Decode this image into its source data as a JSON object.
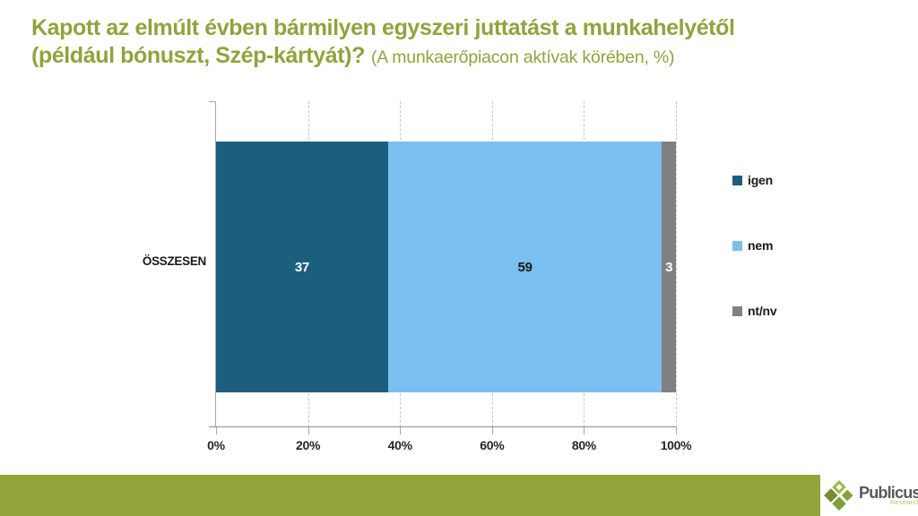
{
  "title": {
    "line1": "Kapott az elmúlt évben bármilyen egyszeri juttatást a munkahelyétől",
    "line2_bold": "(például bónuszt, Szép-kártyát)?",
    "subtitle": "(A munkaerőpiacon aktívak körében, %)"
  },
  "chart_data": {
    "type": "bar",
    "orientation": "horizontal",
    "stacked": true,
    "title": "Kapott az elmúlt évben bármilyen egyszeri juttatást a munkahelyétől (például bónuszt, Szép-kártyát)?",
    "subtitle": "(A munkaerőpiacon aktívak körében, %)",
    "categories": [
      "ÖSSZESEN"
    ],
    "series": [
      {
        "name": "igen",
        "values": [
          37
        ],
        "color": "#1C5E7E"
      },
      {
        "name": "nem",
        "values": [
          59
        ],
        "color": "#7BBEF0"
      },
      {
        "name": "nt/nv",
        "values": [
          3
        ],
        "color": "#808080"
      }
    ],
    "x_ticks": [
      "0%",
      "20%",
      "40%",
      "60%",
      "80%",
      "100%"
    ],
    "xlim": [
      0,
      100
    ],
    "grid": "vertical-dashed",
    "legend_position": "right"
  },
  "footer": {
    "brand": "Publicus",
    "brand_sub": "Research"
  },
  "colors": {
    "accent_green": "#91A33D",
    "footer_green": "#93A43C",
    "axis_gray": "#A6A6A6",
    "label_text": "#1A1A1A"
  }
}
